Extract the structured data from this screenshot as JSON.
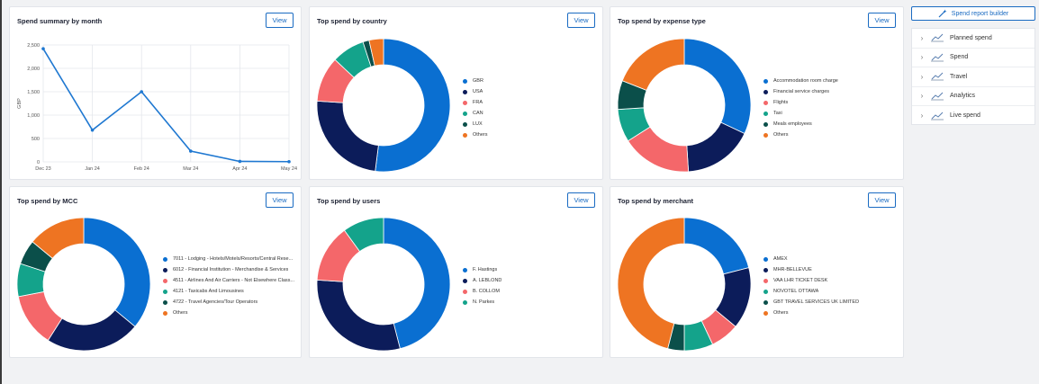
{
  "builder": {
    "label": "Spend report builder",
    "icon": "magic-wand-icon"
  },
  "side_menu": [
    {
      "label": "Planned spend"
    },
    {
      "label": "Spend"
    },
    {
      "label": "Travel"
    },
    {
      "label": "Analytics"
    },
    {
      "label": "Live spend"
    }
  ],
  "cards": {
    "month": {
      "title": "Spend summary by month",
      "view": "View"
    },
    "country": {
      "title": "Top spend by country",
      "view": "View"
    },
    "expense": {
      "title": "Top spend by expense type",
      "view": "View"
    },
    "mcc": {
      "title": "Top spend by MCC",
      "view": "View"
    },
    "users": {
      "title": "Top spend by users",
      "view": "View"
    },
    "merchant": {
      "title": "Top spend by merchant",
      "view": "View"
    }
  },
  "colors": {
    "blue": "#0a6fd1",
    "navy": "#0c1c5a",
    "salmon": "#f4676a",
    "teal": "#14a38b",
    "darkgreen": "#0b4f4a",
    "orange": "#ee7422",
    "line": "#1f78d1"
  },
  "chart_data": [
    {
      "id": "month",
      "type": "line",
      "categories": [
        "Dec 23",
        "Jan 24",
        "Feb 24",
        "Mar 24",
        "Apr 24",
        "May 24"
      ],
      "x": [
        "Dec 23",
        "Jan 24",
        "Feb 24",
        "Mar 24",
        "Apr 24",
        "May 24"
      ],
      "values": [
        2420,
        680,
        1500,
        230,
        10,
        5
      ],
      "ylabel": "GBP",
      "ylim": [
        0,
        2500
      ],
      "yticks": [
        "0",
        "500",
        "1,000",
        "1,500",
        "2,000",
        "2,500"
      ],
      "grid": true
    },
    {
      "id": "country",
      "type": "pie",
      "labels": [
        "GBR",
        "USA",
        "FRA",
        "CAN",
        "LUX",
        "Others"
      ],
      "values": [
        52,
        24,
        11,
        8,
        1.5,
        3.5
      ],
      "colors": [
        "#0a6fd1",
        "#0c1c5a",
        "#f4676a",
        "#14a38b",
        "#0b4f4a",
        "#ee7422"
      ],
      "legend": "right"
    },
    {
      "id": "expense",
      "type": "pie",
      "labels": [
        "Accommodation room charge",
        "Financial service charges",
        "Flights",
        "Taxi",
        "Meals employees",
        "Others"
      ],
      "values": [
        32,
        17,
        17,
        8,
        7,
        19
      ],
      "colors": [
        "#0a6fd1",
        "#0c1c5a",
        "#f4676a",
        "#14a38b",
        "#0b4f4a",
        "#ee7422"
      ],
      "legend": "right"
    },
    {
      "id": "mcc",
      "type": "pie",
      "labels": [
        "7011 - Lodging - Hotels/Motels/Resorts/Central Rese...",
        "6012 - Financial Institution - Merchandise & Services",
        "4511 - Airlines And Air Carriers - Not Elsewhere Class...",
        "4121 - Taxicabs And Limousines",
        "4722 - Travel Agencies/Tour Operators",
        "Others"
      ],
      "values": [
        36,
        23,
        13,
        8,
        6,
        14
      ],
      "colors": [
        "#0a6fd1",
        "#0c1c5a",
        "#f4676a",
        "#14a38b",
        "#0b4f4a",
        "#ee7422"
      ],
      "legend": "right"
    },
    {
      "id": "users",
      "type": "pie",
      "labels": [
        "F. Hastings",
        "A. LEBLOND",
        "B. COLLOM",
        "N. Parkes"
      ],
      "values": [
        46,
        30,
        14,
        10
      ],
      "colors": [
        "#0a6fd1",
        "#0c1c5a",
        "#f4676a",
        "#14a38b"
      ],
      "legend": "right"
    },
    {
      "id": "merchant",
      "type": "pie",
      "labels": [
        "AMEX",
        "MHR-BELLEVUE",
        "VAA LHR TICKET DESK",
        "NOVOTEL OTTAWA",
        "GBT TRAVEL SERVICES UK LIMITED",
        "Others"
      ],
      "values": [
        21,
        15,
        7,
        7,
        4,
        46
      ],
      "colors": [
        "#0a6fd1",
        "#0c1c5a",
        "#f4676a",
        "#14a38b",
        "#0b4f4a",
        "#ee7422"
      ],
      "legend": "right"
    }
  ]
}
